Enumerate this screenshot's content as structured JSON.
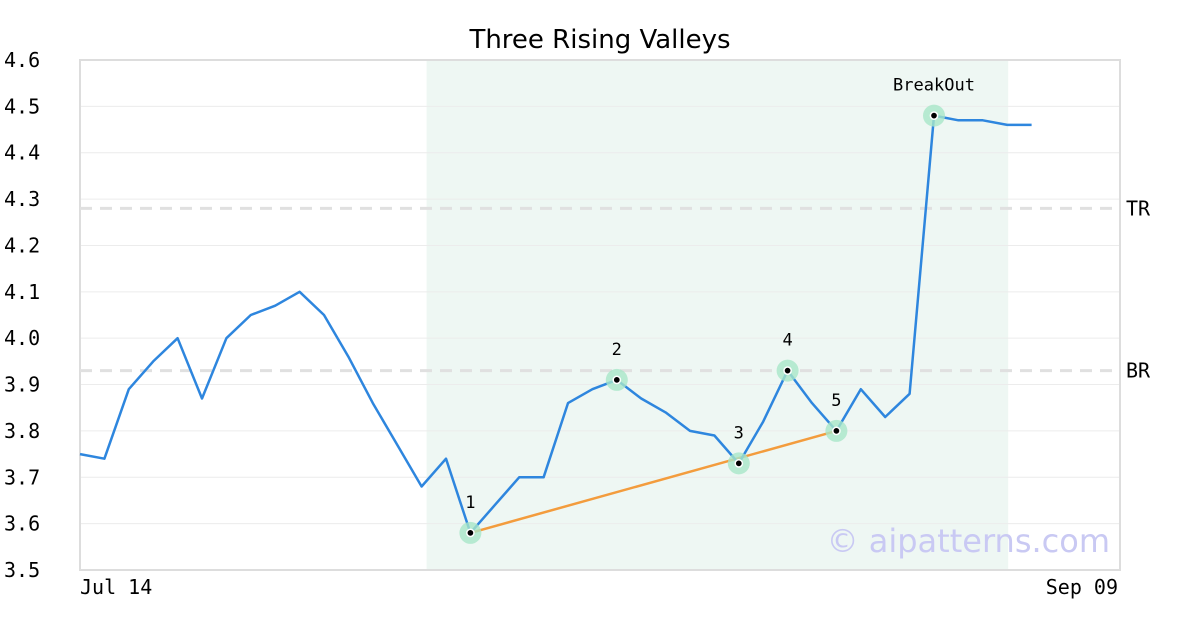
{
  "chart_data": {
    "type": "line",
    "title": "Three Rising Valleys",
    "x_labels": [
      "Jul 14",
      "Sep 09"
    ],
    "ylim": [
      3.5,
      4.6
    ],
    "y_ticks": [
      "3.5",
      "3.6",
      "3.7",
      "3.8",
      "3.9",
      "4.0",
      "4.1",
      "4.2",
      "4.3",
      "4.4",
      "4.5",
      "4.6"
    ],
    "grid": true,
    "series": [
      {
        "color": "#2e86de",
        "values": [
          3.75,
          3.74,
          3.89,
          3.95,
          4.0,
          3.87,
          4.0,
          4.05,
          4.07,
          4.1,
          4.05,
          3.96,
          3.86,
          3.77,
          3.68,
          3.74,
          3.58,
          3.64,
          3.7,
          3.7,
          3.86,
          3.89,
          3.91,
          3.87,
          3.84,
          3.8,
          3.79,
          3.73,
          3.82,
          3.93,
          3.86,
          3.8,
          3.89,
          3.83,
          3.88,
          4.48,
          4.47,
          4.47,
          4.46,
          4.46
        ]
      }
    ],
    "pattern_region": {
      "start_index": 14,
      "end_index": 38,
      "color": "#eef7f3"
    },
    "trendline": {
      "color": "#f39c3d",
      "from_index": 16,
      "to_index": 31
    },
    "levels": [
      {
        "label": "TR",
        "value": 4.28
      },
      {
        "label": "BR",
        "value": 3.93
      }
    ],
    "points": [
      {
        "label": "1",
        "index": 16,
        "value": 3.58
      },
      {
        "label": "2",
        "index": 22,
        "value": 3.91
      },
      {
        "label": "3",
        "index": 27,
        "value": 3.73
      },
      {
        "label": "4",
        "index": 29,
        "value": 3.93
      },
      {
        "label": "5",
        "index": 31,
        "value": 3.8
      },
      {
        "label": "BreakOut",
        "index": 35,
        "value": 4.48
      }
    ],
    "watermark": "© aipatterns.com"
  }
}
